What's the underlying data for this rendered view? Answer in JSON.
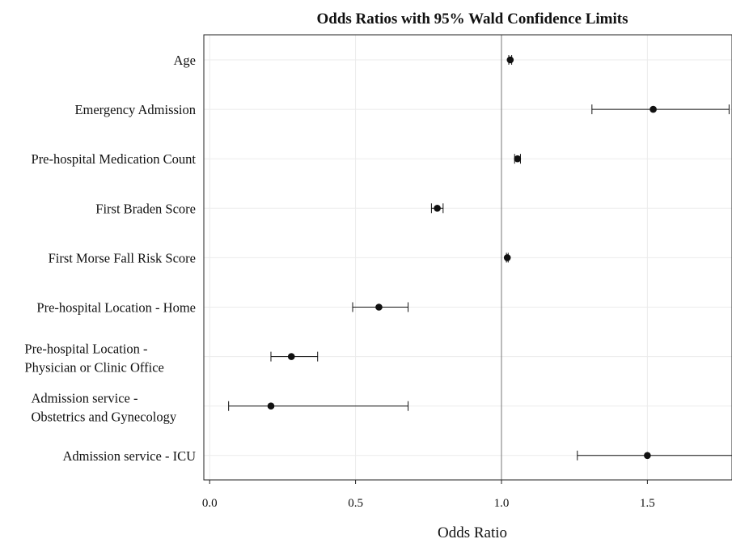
{
  "chart_data": {
    "type": "forest",
    "title": "Odds Ratios with 95% Wald Confidence Limits",
    "xlabel": "Odds Ratio",
    "xlim": [
      -0.02,
      1.79
    ],
    "xticks": [
      "0.0",
      "0.5",
      "1.0",
      "1.5"
    ],
    "xtick_values": [
      0.0,
      0.5,
      1.0,
      1.5
    ],
    "reference_line": 1.0,
    "grid": true,
    "rows": [
      {
        "label": [
          "Age"
        ],
        "or": 1.03,
        "lower": 1.025,
        "upper": 1.035
      },
      {
        "label": [
          "Emergency Admission"
        ],
        "or": 1.52,
        "lower": 1.31,
        "upper": 1.78
      },
      {
        "label": [
          "Pre-hospital Medication Count"
        ],
        "or": 1.055,
        "lower": 1.045,
        "upper": 1.065
      },
      {
        "label": [
          "First Braden Score"
        ],
        "or": 0.78,
        "lower": 0.76,
        "upper": 0.8
      },
      {
        "label": [
          "First Morse Fall Risk Score"
        ],
        "or": 1.02,
        "lower": 1.017,
        "upper": 1.023
      },
      {
        "label": [
          "Pre-hospital Location - Home"
        ],
        "or": 0.58,
        "lower": 0.49,
        "upper": 0.68
      },
      {
        "label": [
          "Pre-hospital Location -",
          "Physician or Clinic Office"
        ],
        "or": 0.28,
        "lower": 0.21,
        "upper": 0.37
      },
      {
        "label": [
          "Admission service -",
          "Obstetrics and Gynecology"
        ],
        "or": 0.21,
        "lower": 0.065,
        "upper": 0.68
      },
      {
        "label": [
          "Admission service - ICU"
        ],
        "or": 1.5,
        "lower": 1.26,
        "upper": 1.79
      }
    ]
  }
}
